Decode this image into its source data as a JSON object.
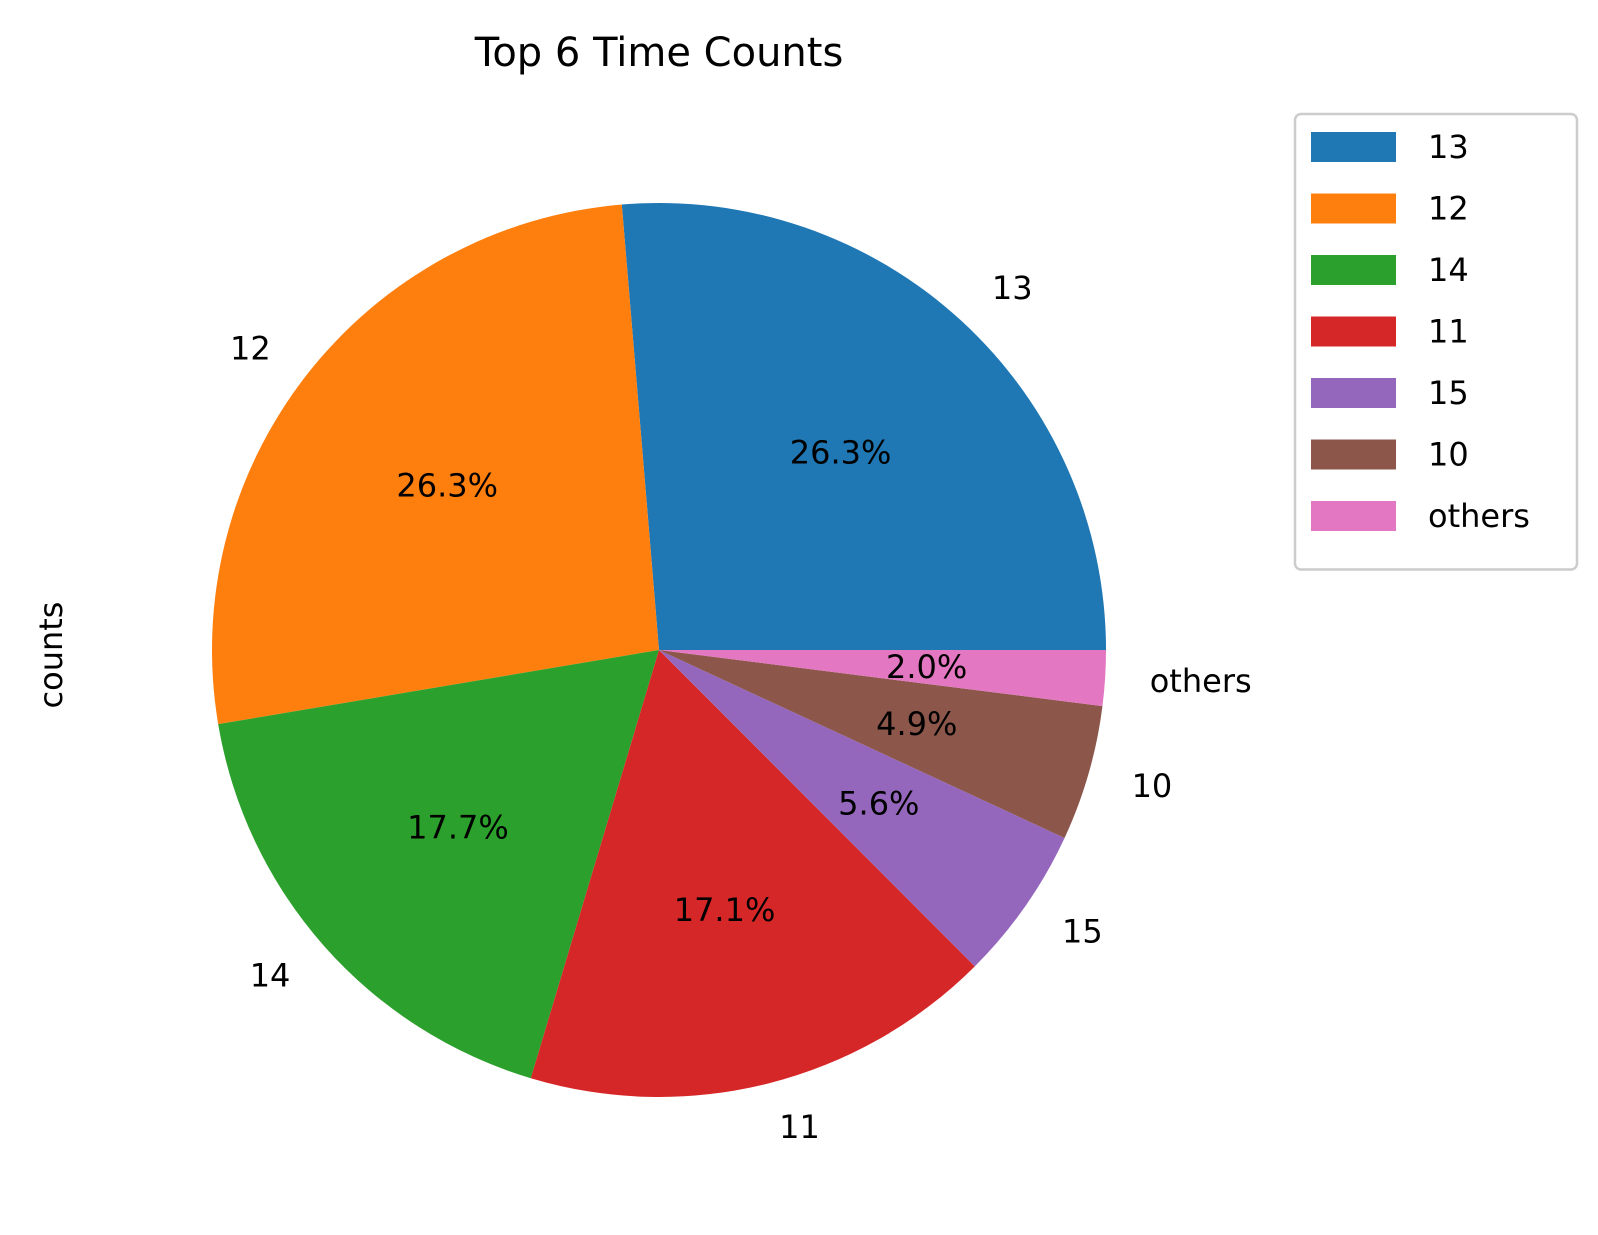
{
  "chart_data": {
    "type": "pie",
    "title": "Top 6 Time Counts",
    "ylabel": "counts",
    "legend": "upper right, outside plot",
    "start_angle_deg": 0,
    "direction": "counterclockwise",
    "slices": [
      {
        "label": "13",
        "percent": 26.3,
        "percent_label": "26.3%",
        "color": "#1f77b4"
      },
      {
        "label": "12",
        "percent": 26.3,
        "percent_label": "26.3%",
        "color": "#ff7f0e"
      },
      {
        "label": "14",
        "percent": 17.7,
        "percent_label": "17.7%",
        "color": "#2ca02c"
      },
      {
        "label": "11",
        "percent": 17.1,
        "percent_label": "17.1%",
        "color": "#d62728"
      },
      {
        "label": "15",
        "percent": 5.6,
        "percent_label": "5.6%",
        "color": "#9467bd"
      },
      {
        "label": "10",
        "percent": 4.9,
        "percent_label": "4.9%",
        "color": "#8c564b"
      },
      {
        "label": "others",
        "percent": 2.0,
        "percent_label": "2.0%",
        "color": "#e377c2"
      }
    ]
  }
}
